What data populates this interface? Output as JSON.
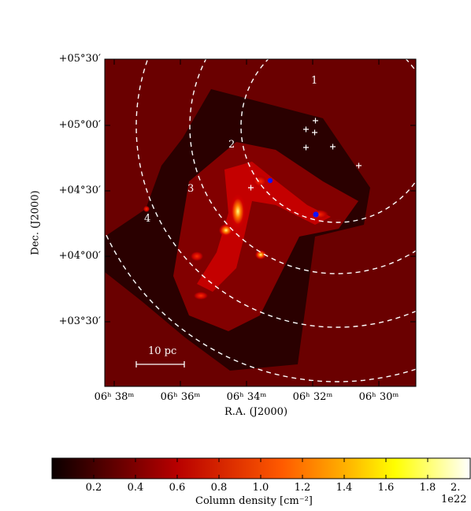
{
  "map": {
    "y_ticks": [
      "+05°30′",
      "+05°00′",
      "+04°30′",
      "+04°00′",
      "+03°30′"
    ],
    "x_ticks": [
      "06ʰ 38ᵐ",
      "06ʰ 36ᵐ",
      "06ʰ 34ᵐ",
      "06ʰ 32ᵐ",
      "06ʰ 30ᵐ"
    ],
    "ylabel": "Dec. (J2000)",
    "xlabel": "R.A. (J2000)",
    "ring_labels": [
      "1",
      "2",
      "3",
      "4"
    ],
    "scale_bar_label": "10 pc",
    "colors": {
      "background_map": "#6a0000",
      "ring_color": "#ffffff",
      "marker_cross": "#ffffff",
      "marker_dot": "#0000ff"
    }
  },
  "colorbar": {
    "ticks": [
      "0.2",
      "0.4",
      "0.6",
      "0.8",
      "1.0",
      "1.2",
      "1.4",
      "1.6",
      "1.8",
      "2."
    ],
    "exponent_label": "1e22",
    "label": "Column density [cm⁻²]",
    "colormap": "hot"
  }
}
